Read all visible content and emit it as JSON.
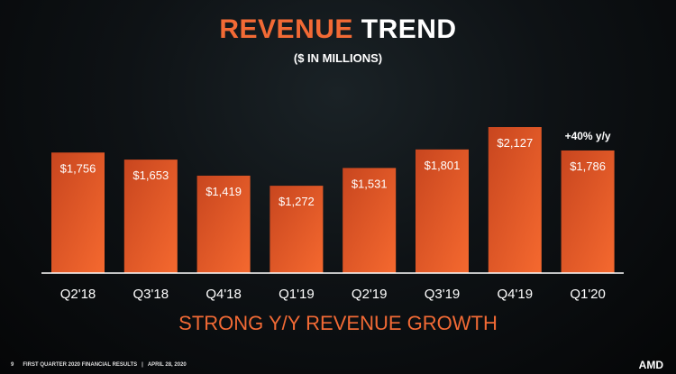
{
  "header": {
    "title_accent": "REVENUE",
    "title_rest": "TREND",
    "subtitle": "($ IN MILLIONS)"
  },
  "chart_data": {
    "type": "bar",
    "title": "REVENUE TREND",
    "subtitle": "($ IN MILLIONS)",
    "xlabel": "",
    "ylabel": "",
    "categories": [
      "Q2'18",
      "Q3'18",
      "Q4'18",
      "Q1'19",
      "Q2'19",
      "Q3'19",
      "Q4'19",
      "Q1'20"
    ],
    "values": [
      1756,
      1653,
      1419,
      1272,
      1531,
      1801,
      2127,
      1786
    ],
    "labels": [
      "$1,756",
      "$1,653",
      "$1,419",
      "$1,272",
      "$1,531",
      "$1,801",
      "$2,127",
      "$1,786"
    ],
    "annotation": {
      "category": "Q1'20",
      "text": "+40% y/y"
    },
    "ylim": [
      0,
      2127
    ],
    "grid": false,
    "bar_color": "#f26a35"
  },
  "tagline": "STRONG Y/Y REVENUE GROWTH",
  "footer": {
    "page": "9",
    "text": "FIRST QUARTER 2020 FINANCIAL RESULTS",
    "separator": "|",
    "date": "APRIL 28, 2020"
  },
  "logo": "AMD"
}
